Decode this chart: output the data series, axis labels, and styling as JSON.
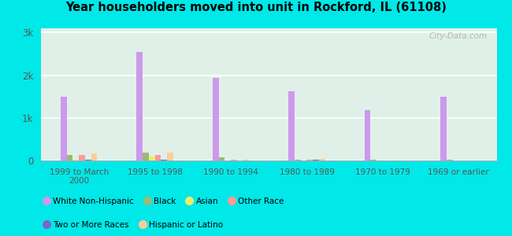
{
  "title": "Year householders moved into unit in Rockford, IL (61108)",
  "categories": [
    "1999 to March\n2000",
    "1995 to 1998",
    "1990 to 1994",
    "1980 to 1989",
    "1970 to 1979",
    "1969 or earlier"
  ],
  "series": {
    "White Non-Hispanic": [
      1500,
      2550,
      1930,
      1620,
      1180,
      1500
    ],
    "Black": [
      130,
      190,
      70,
      25,
      10,
      15
    ],
    "Asian": [
      10,
      100,
      5,
      5,
      5,
      5
    ],
    "Other Race": [
      120,
      130,
      20,
      25,
      5,
      5
    ],
    "Two or More Races": [
      20,
      20,
      5,
      25,
      5,
      5
    ],
    "Hispanic or Latino": [
      160,
      185,
      15,
      30,
      5,
      5
    ]
  },
  "colors": {
    "White Non-Hispanic": "#cc99ee",
    "Black": "#99bb77",
    "Asian": "#eeee66",
    "Other Race": "#ff9999",
    "Two or More Races": "#7766cc",
    "Hispanic or Latino": "#ffcc99"
  },
  "bar_width": 0.08,
  "ylim": [
    0,
    3100
  ],
  "yticks": [
    0,
    1000,
    2000,
    3000
  ],
  "ytick_labels": [
    "0",
    "1k",
    "2k",
    "3k"
  ],
  "background_color": "#00e8e8",
  "plot_bg": "#e0f0e8",
  "watermark": "City-Data.com",
  "legend_row1": [
    "White Non-Hispanic",
    "Black",
    "Asian",
    "Other Race"
  ],
  "legend_row2": [
    "Two or More Races",
    "Hispanic or Latino"
  ]
}
